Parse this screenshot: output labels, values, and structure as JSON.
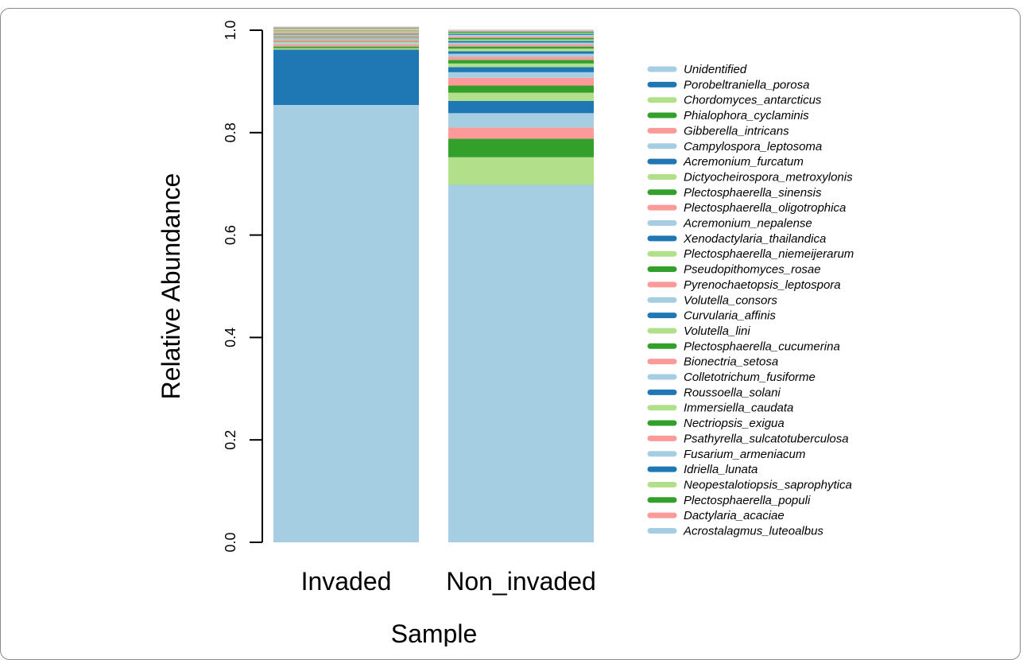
{
  "chart_data": {
    "type": "bar",
    "stacked": true,
    "xlabel": "Sample",
    "ylabel": "Relative Abundance",
    "ylim": [
      0,
      1
    ],
    "y_ticks": [
      "0.0",
      "0.2",
      "0.4",
      "0.6",
      "0.8",
      "1.0"
    ],
    "categories": [
      "Invaded",
      "Non_invaded"
    ],
    "legend_position": "right",
    "series": [
      {
        "name": "Unidentified",
        "color": "#a6cee3",
        "values": [
          0.854,
          0.698
        ]
      },
      {
        "name": "Porobeltraniella_porosa",
        "color": "#1f78b4",
        "values": [
          0.108,
          0.0
        ]
      },
      {
        "name": "Chordomyces_antarcticus",
        "color": "#b2df8a",
        "values": [
          0.003,
          0.054
        ]
      },
      {
        "name": "Phialophora_cyclaminis",
        "color": "#33a02c",
        "values": [
          0.003,
          0.036
        ]
      },
      {
        "name": "Gibberella_intricans",
        "color": "#fb9a99",
        "values": [
          0.004,
          0.022
        ]
      },
      {
        "name": "Campylospora_leptosoma",
        "color": "#a6cee3",
        "values": [
          0.003,
          0.028
        ]
      },
      {
        "name": "Acremonium_furcatum",
        "color": "#1f78b4",
        "values": [
          0.0,
          0.024
        ]
      },
      {
        "name": "Dictyocheirospora_metroxylonis",
        "color": "#b2df8a",
        "values": [
          0.002,
          0.016
        ]
      },
      {
        "name": "Plectosphaerella_sinensis",
        "color": "#33a02c",
        "values": [
          0.001,
          0.014
        ]
      },
      {
        "name": "Plectosphaerella_oligotrophica",
        "color": "#fb9a99",
        "values": [
          0.004,
          0.015
        ]
      },
      {
        "name": "Acremonium_nepalense",
        "color": "#a6cee3",
        "values": [
          0.002,
          0.011
        ]
      },
      {
        "name": "Xenodactylaria_thailandica",
        "color": "#1f78b4",
        "values": [
          0.001,
          0.01
        ]
      },
      {
        "name": "Plectosphaerella_niemeijerarum",
        "color": "#b2df8a",
        "values": [
          0.001,
          0.007
        ]
      },
      {
        "name": "Pseudopithomyces_rosae",
        "color": "#33a02c",
        "values": [
          0.001,
          0.007
        ]
      },
      {
        "name": "Pyrenochaetopsis_leptospora",
        "color": "#fb9a99",
        "values": [
          0.003,
          0.006
        ]
      },
      {
        "name": "Volutella_consors",
        "color": "#a6cee3",
        "values": [
          0.001,
          0.006
        ]
      },
      {
        "name": "Curvularia_affinis",
        "color": "#1f78b4",
        "values": [
          0.001,
          0.005
        ]
      },
      {
        "name": "Volutella_lini",
        "color": "#b2df8a",
        "values": [
          0.001,
          0.005
        ]
      },
      {
        "name": "Plectosphaerella_cucumerina",
        "color": "#33a02c",
        "values": [
          0.001,
          0.004
        ]
      },
      {
        "name": "Bionectria_setosa",
        "color": "#fb9a99",
        "values": [
          0.002,
          0.004
        ]
      },
      {
        "name": "Colletotrichum_fusiforme",
        "color": "#a6cee3",
        "values": [
          0.001,
          0.004
        ]
      },
      {
        "name": "Roussoella_solani",
        "color": "#1f78b4",
        "values": [
          0.0,
          0.003
        ]
      },
      {
        "name": "Immersiella_caudata",
        "color": "#b2df8a",
        "values": [
          0.001,
          0.003
        ]
      },
      {
        "name": "Nectriopsis_exigua",
        "color": "#33a02c",
        "values": [
          0.001,
          0.003
        ]
      },
      {
        "name": "Psathyrella_sulcatotuberculosa",
        "color": "#fb9a99",
        "values": [
          0.002,
          0.003
        ]
      },
      {
        "name": "Fusarium_armeniacum",
        "color": "#a6cee3",
        "values": [
          0.001,
          0.003
        ]
      },
      {
        "name": "Idriella_lunata",
        "color": "#1f78b4",
        "values": [
          0.0,
          0.002
        ]
      },
      {
        "name": "Neopestalotiopsis_saprophytica",
        "color": "#b2df8a",
        "values": [
          0.001,
          0.002
        ]
      },
      {
        "name": "Plectosphaerella_populi",
        "color": "#33a02c",
        "values": [
          0.001,
          0.002
        ]
      },
      {
        "name": "Dactylaria_acaciae",
        "color": "#fb9a99",
        "values": [
          0.002,
          0.002
        ]
      },
      {
        "name": "Acrostalagmus_luteoalbus",
        "color": "#a6cee3",
        "values": [
          0.001,
          0.002
        ]
      }
    ]
  }
}
